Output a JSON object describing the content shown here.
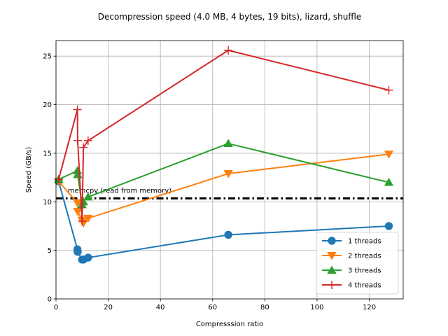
{
  "chart_data": {
    "type": "line",
    "title": "Decompression speed (4.0 MB, 4 bytes, 19 bits), lizard, shuffle",
    "xlabel": "Compresssion ratio",
    "ylabel": "Speed (GB/s)",
    "xlim": [
      0,
      133
    ],
    "ylim": [
      0,
      26.6
    ],
    "xticks": [
      0,
      20,
      40,
      60,
      80,
      100,
      120
    ],
    "yticks": [
      0,
      5,
      10,
      15,
      20,
      25
    ],
    "grid": true,
    "legend_position": "lower right",
    "reference_line": {
      "y": 10.35,
      "label": "memcpy (read from memory)",
      "color": "#000000",
      "style": "dash-dot"
    },
    "series": [
      {
        "name": "1 threads",
        "color": "#1f77b4",
        "marker": "circle",
        "x": [
          1.0,
          8.2,
          8.3,
          10.0,
          10.5,
          12.3,
          66.0,
          127.5
        ],
        "y": [
          12.1,
          5.1,
          4.85,
          4.05,
          4.05,
          4.25,
          6.6,
          7.5
        ]
      },
      {
        "name": "2 threads",
        "color": "#ff7f0e",
        "marker": "triangle-down",
        "x": [
          1.0,
          8.2,
          8.3,
          10.0,
          10.5,
          12.3,
          66.0,
          127.5
        ],
        "y": [
          12.1,
          9.9,
          9.0,
          8.1,
          7.8,
          8.3,
          12.9,
          14.9
        ]
      },
      {
        "name": "3 threads",
        "color": "#2ca02c",
        "marker": "triangle-up",
        "x": [
          1.0,
          8.2,
          8.3,
          10.0,
          10.5,
          12.3,
          66.0,
          127.5
        ],
        "y": [
          12.3,
          13.2,
          12.8,
          9.7,
          10.0,
          10.5,
          16.0,
          12.0
        ]
      },
      {
        "name": "4 threads",
        "color": "#d62728",
        "marker": "plus",
        "x": [
          1.0,
          8.2,
          8.3,
          10.0,
          10.5,
          12.3,
          66.0,
          127.5
        ],
        "y": [
          12.3,
          19.5,
          16.3,
          8.0,
          15.6,
          16.3,
          25.6,
          21.5
        ]
      }
    ]
  }
}
